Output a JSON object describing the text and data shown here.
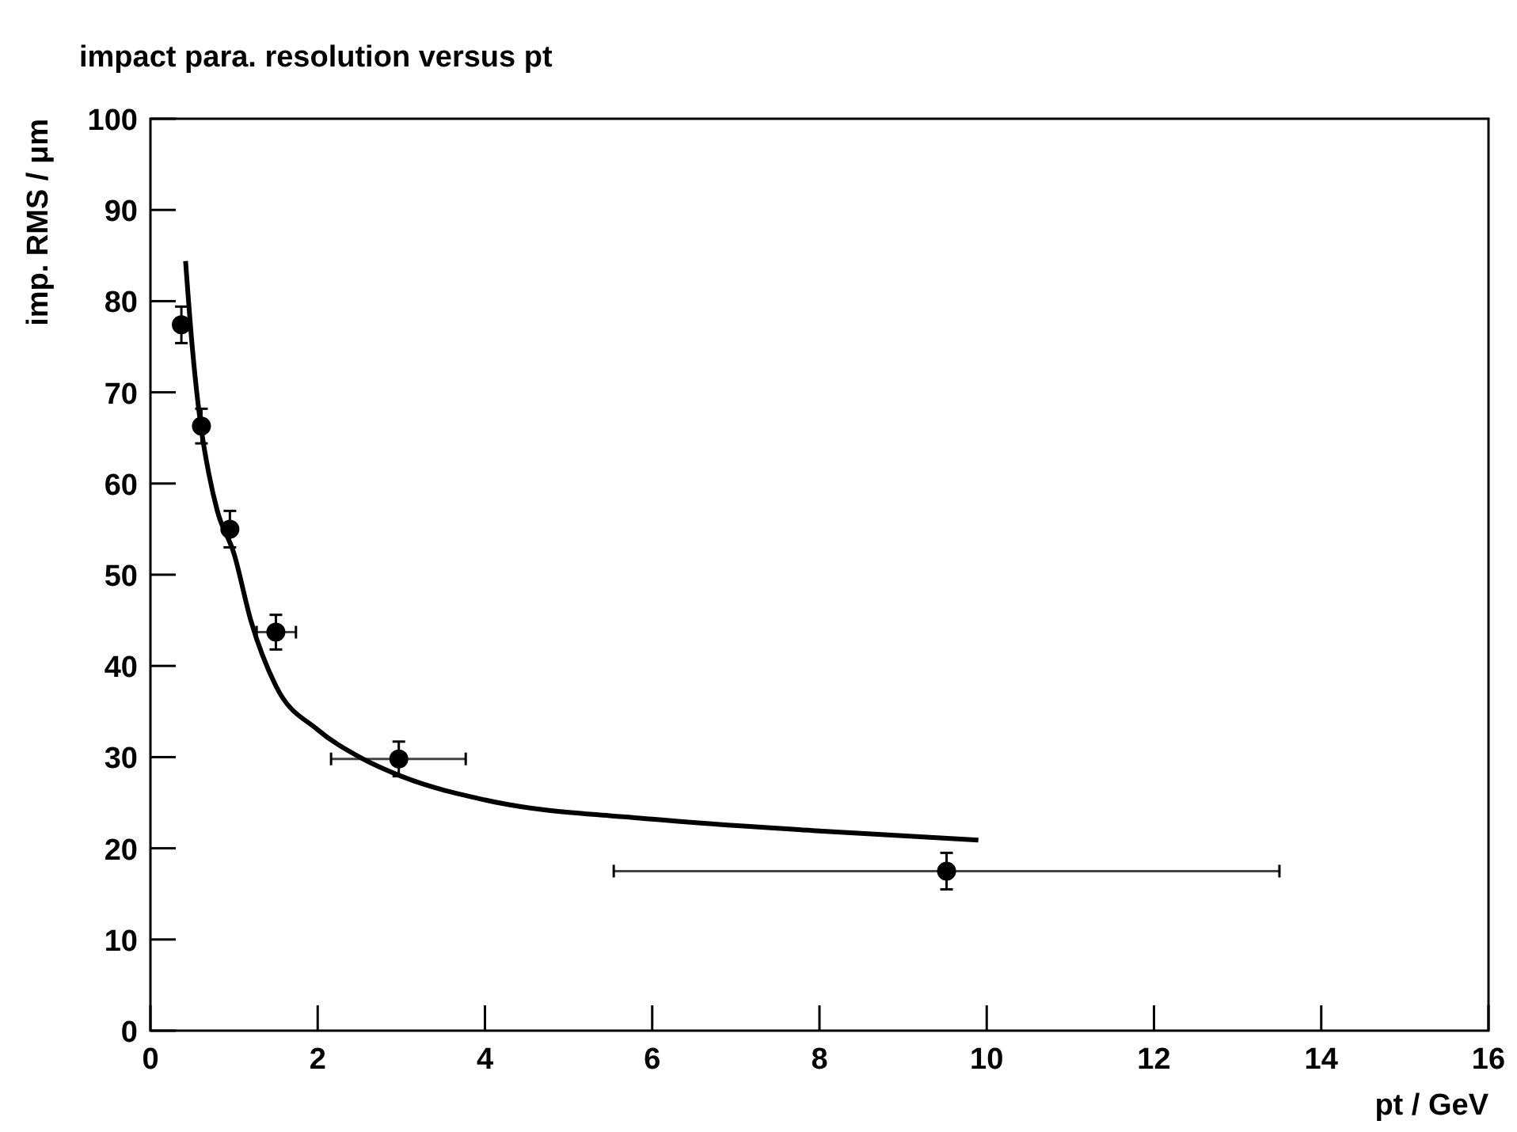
{
  "chart_data": {
    "type": "scatter",
    "title": "impact para. resolution versus pt",
    "xlabel": "pt / GeV",
    "ylabel": "imp. RMS / μm",
    "xlim": [
      0,
      16
    ],
    "ylim": [
      0,
      100
    ],
    "xticks": [
      0,
      2,
      4,
      6,
      8,
      10,
      12,
      14,
      16
    ],
    "yticks": [
      0,
      10,
      20,
      30,
      40,
      50,
      60,
      70,
      80,
      90,
      100
    ],
    "grid": false,
    "series": [
      {
        "color": "#000000",
        "marker": "circle",
        "x": [
          0.37,
          0.61,
          0.95,
          1.5,
          2.97,
          9.52
        ],
        "values": [
          77.4,
          66.3,
          55.0,
          43.7,
          29.8,
          17.5
        ],
        "errors": [
          2,
          1.9,
          2,
          1.9,
          1.9,
          2
        ],
        "xerrors": [
          null,
          null,
          null,
          [
            1.27,
            1.74
          ],
          [
            2.16,
            3.77
          ],
          [
            5.54,
            13.5
          ]
        ]
      },
      {
        "type": "line",
        "color": "#000000",
        "line_style": "solid",
        "x": [
          0.42,
          0.5,
          0.6,
          0.7,
          0.8,
          1.0,
          1.2,
          1.5,
          2,
          2.5,
          3,
          4,
          6,
          8,
          9.9
        ],
        "values": [
          84.4,
          75,
          66.5,
          61,
          57,
          52.3,
          45,
          37.8,
          33,
          30,
          27.9,
          25.3,
          23.2,
          21.9,
          20.9
        ]
      }
    ]
  }
}
